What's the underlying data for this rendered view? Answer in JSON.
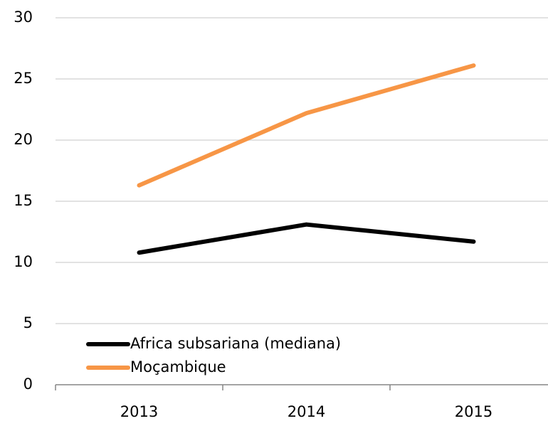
{
  "chart_data": {
    "type": "line",
    "categories": [
      "2013",
      "2014",
      "2015"
    ],
    "series": [
      {
        "name": "Africa subsariana (mediana)",
        "color": "#000000",
        "values": [
          10.8,
          13.1,
          11.7
        ]
      },
      {
        "name": "Moçambique",
        "color": "#f79646",
        "values": [
          16.3,
          22.2,
          26.1
        ]
      }
    ],
    "ylim": [
      0,
      30
    ],
    "yticks": [
      0,
      5,
      10,
      15,
      20,
      25,
      30
    ],
    "grid": true,
    "legend": "lower left"
  }
}
